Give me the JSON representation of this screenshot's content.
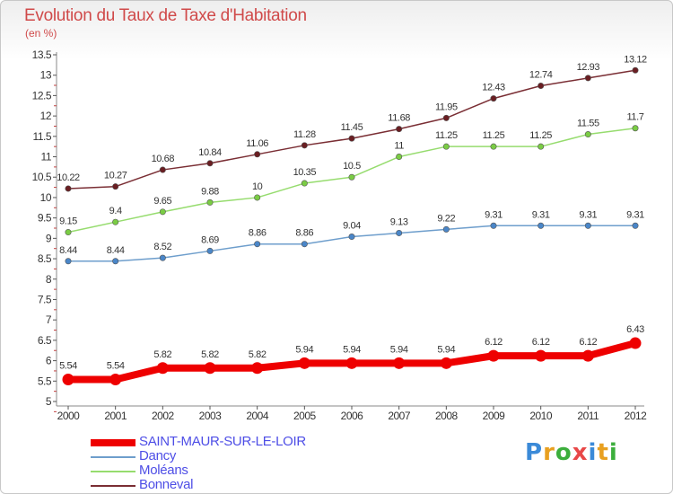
{
  "title": "Evolution du Taux de Taxe d'Habitation",
  "unit": "(en %)",
  "logo": {
    "text": "Proxiti",
    "letter_colors": [
      "#3b8ad8",
      "#e8a020",
      "#3cae3c",
      "#e84848",
      "#3b8ad8",
      "#e8a020",
      "#3cae3c"
    ]
  },
  "chart_data": {
    "type": "line",
    "x": [
      "2000",
      "2001",
      "2002",
      "2003",
      "2004",
      "2005",
      "2006",
      "2007",
      "2008",
      "2009",
      "2010",
      "2011",
      "2012"
    ],
    "ylim": [
      5,
      13.5
    ],
    "yticks": [
      "5",
      "5.5",
      "6",
      "6.5",
      "7",
      "7.5",
      "8",
      "8.5",
      "9",
      "9.5",
      "10",
      "10.5",
      "11",
      "11.5",
      "12",
      "12.5",
      "13",
      "13.5"
    ],
    "grid": false,
    "legend_position": "bottom-left",
    "series": [
      {
        "name": "SAINT-MAUR-SUR-LE-LOIR",
        "color": "#ee0000",
        "marker_color": "#ee0000",
        "values": [
          5.54,
          5.54,
          5.82,
          5.82,
          5.82,
          5.94,
          5.94,
          5.94,
          5.94,
          6.12,
          6.12,
          6.12,
          6.43
        ],
        "labels": [
          "5.54",
          "5.54",
          "5.82",
          "5.82",
          "5.82",
          "5.94",
          "5.94",
          "5.94",
          "5.94",
          "6.12",
          "6.12",
          "6.12",
          "6.43"
        ]
      },
      {
        "name": "Dancy",
        "color": "#6e9ecc",
        "marker_color": "#4a86c8",
        "values": [
          8.44,
          8.44,
          8.52,
          8.69,
          8.86,
          8.86,
          9.04,
          9.13,
          9.22,
          9.31,
          9.31,
          9.31,
          9.31
        ],
        "labels": [
          "8.44",
          "8.44",
          "8.52",
          "8.69",
          "8.86",
          "8.86",
          "9.04",
          "9.13",
          "9.22",
          "9.31",
          "9.31",
          "9.31",
          "9.31"
        ]
      },
      {
        "name": "Moléans",
        "color": "#96dc6e",
        "marker_color": "#7acc44",
        "values": [
          9.15,
          9.4,
          9.65,
          9.88,
          10,
          10.35,
          10.5,
          11,
          11.25,
          11.25,
          11.25,
          11.55,
          11.7
        ],
        "labels": [
          "9.15",
          "9.4",
          "9.65",
          "9.88",
          "10",
          "10.35",
          "10.5",
          "11",
          "11.25",
          "11.25",
          "11.25",
          "11.55",
          "11.7"
        ]
      },
      {
        "name": "Bonneval",
        "color": "#7a2e34",
        "marker_color": "#6a1e22",
        "values": [
          10.22,
          10.27,
          10.68,
          10.84,
          11.06,
          11.28,
          11.45,
          11.68,
          11.95,
          12.43,
          12.74,
          12.93,
          13.12
        ],
        "labels": [
          "10.22",
          "10.27",
          "10.68",
          "10.84",
          "11.06",
          "11.28",
          "11.45",
          "11.68",
          "11.95",
          "12.43",
          "12.74",
          "12.93",
          "13.12"
        ]
      }
    ]
  }
}
